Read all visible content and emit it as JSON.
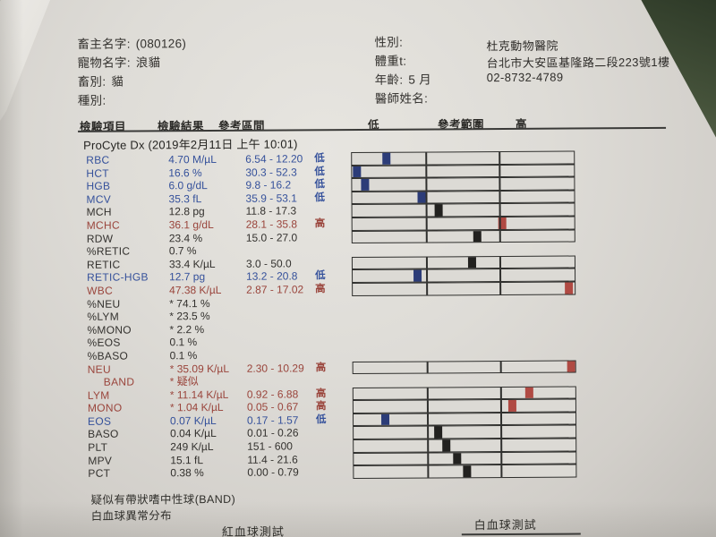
{
  "header": {
    "owner": {
      "label": "畜主名字:",
      "value": "(080126)"
    },
    "pet": {
      "label": "寵物名字:",
      "value": "浪貓"
    },
    "species": {
      "label": "畜別:",
      "value": "貓"
    },
    "breed": {
      "label": "種別:",
      "value": ""
    },
    "sex": {
      "label": "性別:",
      "value": ""
    },
    "weight": {
      "label": "體重t:",
      "value": ""
    },
    "age": {
      "label": "年齡:",
      "value": "5 月"
    },
    "vet": {
      "label": "醫師姓名:",
      "value": ""
    },
    "clinic": {
      "name": "杜克動物醫院",
      "address": "台北市大安區基隆路二段223號1樓",
      "phone": "02-8732-4789"
    }
  },
  "table": {
    "col_item": "檢驗項目",
    "col_result": "檢驗結果",
    "col_range": "參考區間",
    "col_low": "低",
    "col_ref": "參考範圍",
    "col_high": "高",
    "section_title": "ProCyte Dx (2019年2月11日 上午 10:01)",
    "rows": [
      {
        "name": "RBC",
        "result": "4.70 M/µL",
        "range": "6.54 - 12.20",
        "flag": "低",
        "color": "blue",
        "bar": {
          "pos": 15.4,
          "color": "blue"
        }
      },
      {
        "name": "HCT",
        "result": "16.6 %",
        "range": "30.3 - 52.3",
        "flag": "低",
        "color": "blue",
        "bar": {
          "pos": 2.4,
          "color": "blue"
        }
      },
      {
        "name": "HGB",
        "result": "6.0 g/dL",
        "range": "9.8 - 16.2",
        "flag": "低",
        "color": "blue",
        "bar": {
          "pos": 6.0,
          "color": "blue"
        }
      },
      {
        "name": "MCV",
        "result": "35.3 fL",
        "range": "35.9 - 53.1",
        "flag": "低",
        "color": "blue",
        "bar": {
          "pos": 31.4,
          "color": "blue"
        }
      },
      {
        "name": "MCH",
        "result": "12.8 pg",
        "range": "11.8 - 17.3",
        "flag": "",
        "color": "black",
        "bar": {
          "pos": 38.8,
          "color": "black"
        }
      },
      {
        "name": "MCHC",
        "result": "36.1 g/dL",
        "range": "28.1 - 35.8",
        "flag": "高",
        "color": "red",
        "bar": {
          "pos": 67.6,
          "color": "red"
        }
      },
      {
        "name": "RDW",
        "result": "23.4 %",
        "range": "15.0 - 27.0",
        "flag": "",
        "color": "black",
        "bar": {
          "pos": 56.4,
          "color": "black"
        }
      },
      {
        "name": "%RETIC",
        "result": "0.7 %",
        "range": "",
        "flag": "",
        "color": "black",
        "bar": null
      },
      {
        "name": "RETIC",
        "result": "33.4 K/µL",
        "range": "3.0 - 50.0",
        "flag": "",
        "color": "black",
        "bar": {
          "pos": 54.0,
          "color": "black"
        }
      },
      {
        "name": "RETIC-HGB",
        "result": "12.7 pg",
        "range": "13.2 - 20.8",
        "flag": "低",
        "color": "blue",
        "bar": {
          "pos": 29.2,
          "color": "blue"
        }
      },
      {
        "name": "WBC",
        "result": "47.38 K/µL",
        "range": "2.87 - 17.02",
        "flag": "高",
        "color": "red",
        "bar": {
          "pos": 97.5,
          "color": "red"
        }
      },
      {
        "name": "%NEU",
        "result": "* 74.1 %",
        "range": "",
        "flag": "",
        "color": "black",
        "bar": null
      },
      {
        "name": "%LYM",
        "result": "* 23.5 %",
        "range": "",
        "flag": "",
        "color": "black",
        "bar": null
      },
      {
        "name": "%MONO",
        "result": "* 2.2 %",
        "range": "",
        "flag": "",
        "color": "black",
        "bar": null
      },
      {
        "name": "%EOS",
        "result": "0.1 %",
        "range": "",
        "flag": "",
        "color": "black",
        "bar": null
      },
      {
        "name": "%BASO",
        "result": "0.1 %",
        "range": "",
        "flag": "",
        "color": "black",
        "bar": null
      },
      {
        "name": "NEU",
        "result": "* 35.09 K/µL",
        "range": "2.30 - 10.29",
        "flag": "高",
        "color": "red",
        "bar": {
          "pos": 98.0,
          "color": "red"
        }
      },
      {
        "name": "BAND",
        "result": "* 疑似",
        "range": "",
        "flag": "",
        "color": "red",
        "indent": true,
        "bar": null
      },
      {
        "name": "LYM",
        "result": "* 11.14 K/µL",
        "range": "0.92 - 6.88",
        "flag": "高",
        "color": "red",
        "bar": {
          "pos": 79.2,
          "color": "red"
        }
      },
      {
        "name": "MONO",
        "result": "* 1.04 K/µL",
        "range": "0.05 - 0.67",
        "flag": "高",
        "color": "red",
        "bar": {
          "pos": 71.6,
          "color": "red"
        }
      },
      {
        "name": "EOS",
        "result": "0.07 K/µL",
        "range": "0.17 - 1.57",
        "flag": "低",
        "color": "blue",
        "bar": {
          "pos": 14.4,
          "color": "blue"
        }
      },
      {
        "name": "BASO",
        "result": "0.04 K/µL",
        "range": "0.01 - 0.26",
        "flag": "",
        "color": "black",
        "bar": {
          "pos": 38.0,
          "color": "black"
        }
      },
      {
        "name": "PLT",
        "result": "249 K/µL",
        "range": "151 - 600",
        "flag": "",
        "color": "black",
        "bar": {
          "pos": 41.6,
          "color": "black"
        }
      },
      {
        "name": "MPV",
        "result": "15.1 fL",
        "range": "11.4 - 21.6",
        "flag": "",
        "color": "black",
        "bar": {
          "pos": 46.4,
          "color": "black"
        }
      },
      {
        "name": "PCT",
        "result": "0.38 %",
        "range": "0.00 - 0.79",
        "flag": "",
        "color": "black",
        "bar": {
          "pos": 51.2,
          "color": "black"
        }
      }
    ]
  },
  "footnotes": {
    "line1": "疑似有帶狀嗜中性球(BAND)",
    "line2": "白血球異常分布"
  },
  "footer": {
    "rbc_label": "紅血球測試",
    "wbc_label": "白血球測試"
  },
  "colors": {
    "text_blue": "#35519b",
    "text_red": "#9a453c",
    "text_black": "#33312e",
    "marker_blue": "#2c3c78",
    "marker_red": "#b04a43",
    "marker_black": "#22211f",
    "paper": "#dedcd7",
    "desk": "#3a4630"
  }
}
